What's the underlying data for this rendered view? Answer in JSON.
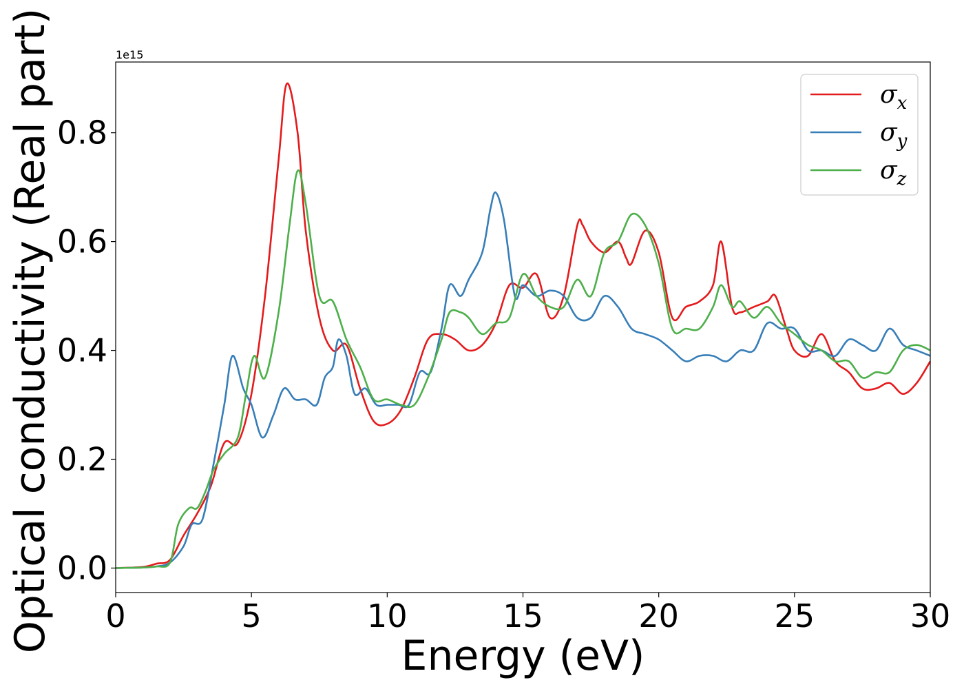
{
  "chart_data": {
    "type": "line",
    "title": "",
    "xlabel": "Energy (eV)",
    "ylabel": "Optical conductivity (Real part)",
    "y_offset_label": "1e15",
    "xlim": [
      0,
      30
    ],
    "ylim": [
      -0.045,
      0.93
    ],
    "xticks": [
      0,
      5,
      10,
      15,
      20,
      25,
      30
    ],
    "xtick_labels": [
      "0",
      "5",
      "10",
      "15",
      "20",
      "25",
      "30"
    ],
    "yticks": [
      0.0,
      0.2,
      0.4,
      0.6,
      0.8
    ],
    "ytick_labels": [
      "0.0",
      "0.2",
      "0.4",
      "0.6",
      "0.8"
    ],
    "grid": false,
    "legend": "top-right",
    "series": [
      {
        "name": "σx",
        "base": "σ",
        "sub": "x",
        "color": "#e41a1c",
        "x": [
          0,
          1,
          1.5,
          2,
          2.5,
          3,
          3.5,
          4,
          4.5,
          5,
          5.5,
          6,
          6.3,
          6.7,
          7,
          7.5,
          8,
          8.5,
          9,
          9.5,
          10,
          10.5,
          11,
          11.5,
          12,
          12.5,
          13,
          13.5,
          14,
          14.5,
          15,
          15.5,
          16,
          16.5,
          17,
          17.2,
          17.5,
          18,
          18.5,
          18.8,
          19,
          19.5,
          20,
          20.5,
          21,
          21.5,
          22,
          22.3,
          22.7,
          23,
          23.5,
          24,
          24.3,
          24.7,
          25,
          25.5,
          26,
          26.5,
          27,
          27.5,
          28,
          28.5,
          29,
          29.5,
          30
        ],
        "y": [
          0,
          0.002,
          0.008,
          0.015,
          0.06,
          0.1,
          0.15,
          0.23,
          0.23,
          0.32,
          0.5,
          0.75,
          0.89,
          0.8,
          0.62,
          0.46,
          0.4,
          0.41,
          0.33,
          0.27,
          0.265,
          0.29,
          0.35,
          0.42,
          0.43,
          0.42,
          0.4,
          0.41,
          0.45,
          0.52,
          0.515,
          0.54,
          0.46,
          0.5,
          0.63,
          0.63,
          0.6,
          0.58,
          0.6,
          0.57,
          0.56,
          0.62,
          0.58,
          0.46,
          0.48,
          0.49,
          0.52,
          0.6,
          0.48,
          0.47,
          0.48,
          0.49,
          0.5,
          0.44,
          0.4,
          0.39,
          0.43,
          0.38,
          0.36,
          0.33,
          0.33,
          0.34,
          0.32,
          0.34,
          0.38
        ]
      },
      {
        "name": "σy",
        "base": "σ",
        "sub": "y",
        "color": "#377eb8",
        "x": [
          0,
          1,
          1.5,
          2,
          2.5,
          2.8,
          3.2,
          3.6,
          4,
          4.3,
          4.7,
          5,
          5.4,
          5.8,
          6.2,
          6.6,
          7,
          7.4,
          7.7,
          8,
          8.2,
          8.5,
          8.8,
          9.2,
          9.6,
          10,
          10.4,
          10.8,
          11.2,
          11.6,
          12,
          12.3,
          12.7,
          13,
          13.5,
          13.8,
          14,
          14.3,
          14.7,
          15,
          15.5,
          16,
          16.5,
          17,
          17.5,
          18,
          18.5,
          19,
          19.5,
          20,
          20.5,
          21,
          21.5,
          22,
          22.5,
          23,
          23.5,
          24,
          24.5,
          25,
          25.5,
          26,
          26.5,
          27,
          27.5,
          28,
          28.5,
          29,
          29.5,
          30
        ],
        "y": [
          0,
          0.001,
          0.003,
          0.01,
          0.04,
          0.08,
          0.09,
          0.19,
          0.3,
          0.39,
          0.33,
          0.3,
          0.24,
          0.28,
          0.33,
          0.31,
          0.31,
          0.3,
          0.35,
          0.37,
          0.42,
          0.39,
          0.32,
          0.33,
          0.3,
          0.3,
          0.3,
          0.3,
          0.36,
          0.36,
          0.44,
          0.52,
          0.5,
          0.53,
          0.58,
          0.66,
          0.69,
          0.64,
          0.5,
          0.52,
          0.5,
          0.51,
          0.5,
          0.46,
          0.46,
          0.5,
          0.48,
          0.44,
          0.43,
          0.42,
          0.4,
          0.38,
          0.39,
          0.39,
          0.38,
          0.4,
          0.4,
          0.45,
          0.44,
          0.44,
          0.4,
          0.4,
          0.39,
          0.42,
          0.41,
          0.4,
          0.44,
          0.41,
          0.4,
          0.39
        ]
      },
      {
        "name": "σz",
        "base": "σ",
        "sub": "z",
        "color": "#4daf4a",
        "x": [
          0,
          1,
          1.5,
          2,
          2.3,
          2.7,
          3,
          3.3,
          3.6,
          4,
          4.5,
          4.8,
          5.1,
          5.5,
          6,
          6.4,
          6.7,
          7,
          7.5,
          8,
          8.5,
          9,
          9.5,
          10,
          10.5,
          11,
          11.5,
          12,
          12.3,
          12.7,
          13,
          13.5,
          14,
          14.5,
          15,
          15.5,
          16,
          16.5,
          17,
          17.5,
          18,
          18.5,
          19,
          19.5,
          20,
          20.5,
          21,
          21.5,
          22,
          22.3,
          22.7,
          23,
          23.5,
          24,
          24.5,
          25,
          25.5,
          26,
          26.5,
          27,
          27.5,
          28,
          28.5,
          29,
          29.5,
          30
        ],
        "y": [
          0,
          0.001,
          0.003,
          0.01,
          0.08,
          0.11,
          0.11,
          0.14,
          0.18,
          0.21,
          0.24,
          0.32,
          0.39,
          0.35,
          0.47,
          0.63,
          0.73,
          0.67,
          0.5,
          0.49,
          0.42,
          0.37,
          0.31,
          0.31,
          0.3,
          0.3,
          0.35,
          0.42,
          0.47,
          0.47,
          0.46,
          0.43,
          0.45,
          0.46,
          0.54,
          0.5,
          0.48,
          0.48,
          0.53,
          0.5,
          0.58,
          0.6,
          0.65,
          0.63,
          0.56,
          0.44,
          0.44,
          0.44,
          0.48,
          0.52,
          0.48,
          0.49,
          0.46,
          0.48,
          0.45,
          0.43,
          0.41,
          0.4,
          0.38,
          0.38,
          0.35,
          0.36,
          0.36,
          0.4,
          0.41,
          0.4
        ]
      }
    ]
  }
}
